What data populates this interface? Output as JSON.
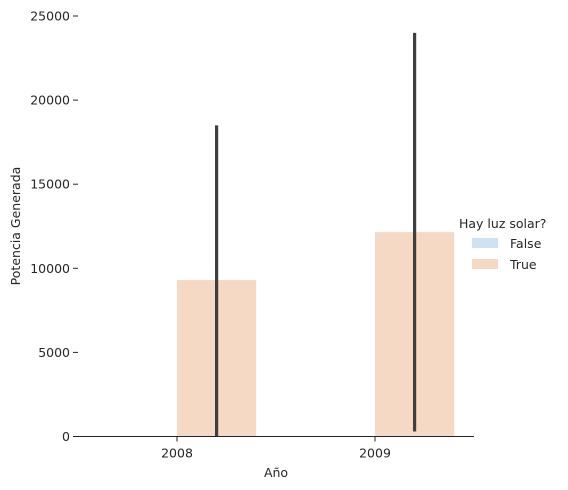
{
  "chart_data": {
    "type": "bar",
    "title": "",
    "xlabel": "Año",
    "ylabel": "Potencia Generada",
    "categories": [
      "2008",
      "2009"
    ],
    "ylim": [
      0,
      25000
    ],
    "yticks": [
      0,
      5000,
      10000,
      15000,
      20000,
      25000
    ],
    "yticklabels": [
      "0",
      "5000",
      "10000",
      "15000",
      "20000",
      "25000"
    ],
    "grid": false,
    "legend": {
      "title": "Hay luz solar?",
      "placement": "right",
      "entries": [
        "False",
        "True"
      ]
    },
    "series": [
      {
        "name": "False",
        "color": "#cfe1f2",
        "values": [
          0,
          0
        ],
        "error": [
          [
            0,
            0
          ],
          [
            0,
            0
          ]
        ]
      },
      {
        "name": "True",
        "color": "#f6d9c5",
        "values": [
          9300,
          12150
        ],
        "error": [
          [
            0,
            18500
          ],
          [
            300,
            24000
          ]
        ]
      }
    ],
    "errorbar_color": "#3f3f3f"
  }
}
